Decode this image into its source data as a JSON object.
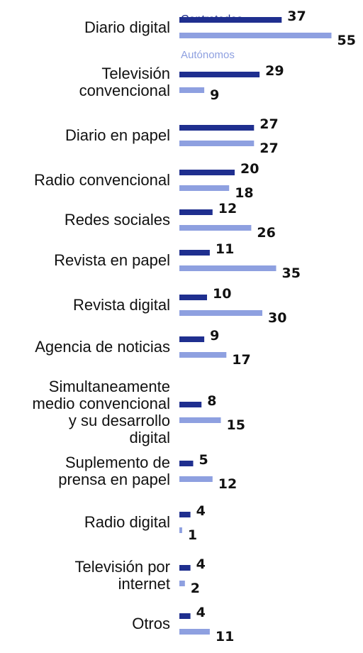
{
  "chart_data": {
    "type": "bar",
    "orientation": "horizontal",
    "categories": [
      "Diario digital",
      "Televisión convencional",
      "Diario en papel",
      "Radio convencional",
      "Redes sociales",
      "Revista en papel",
      "Revista digital",
      "Agencia de noticias",
      "Simultaneamente medio convencional y su desarrollo digital",
      "Suplemento de prensa en papel",
      "Radio digital",
      "Televisión por internet",
      "Otros"
    ],
    "category_lines": [
      [
        "Diario digital"
      ],
      [
        "Televisión",
        "convencional"
      ],
      [
        "Diario en papel"
      ],
      [
        "Radio convencional"
      ],
      [
        "Redes sociales"
      ],
      [
        "Revista en papel"
      ],
      [
        "Revista digital"
      ],
      [
        "Agencia de noticias"
      ],
      [
        "Simultaneamente",
        "medio convencional",
        "y su desarrollo",
        "digital"
      ],
      [
        "Suplemento de",
        "prensa en papel"
      ],
      [
        "Radio digital"
      ],
      [
        "Televisión por",
        "internet"
      ],
      [
        "Otros"
      ]
    ],
    "series": [
      {
        "name": "Contratados",
        "color": "#1f2f8f",
        "values": [
          37,
          29,
          27,
          20,
          12,
          11,
          10,
          9,
          8,
          5,
          4,
          4,
          4
        ]
      },
      {
        "name": "Autónomos",
        "color": "#8ea0e0",
        "values": [
          55,
          9,
          27,
          18,
          26,
          35,
          30,
          17,
          15,
          12,
          1,
          2,
          11
        ]
      }
    ],
    "title": "",
    "xlabel": "",
    "ylabel": "",
    "grid": false,
    "legend": "inline-top"
  }
}
